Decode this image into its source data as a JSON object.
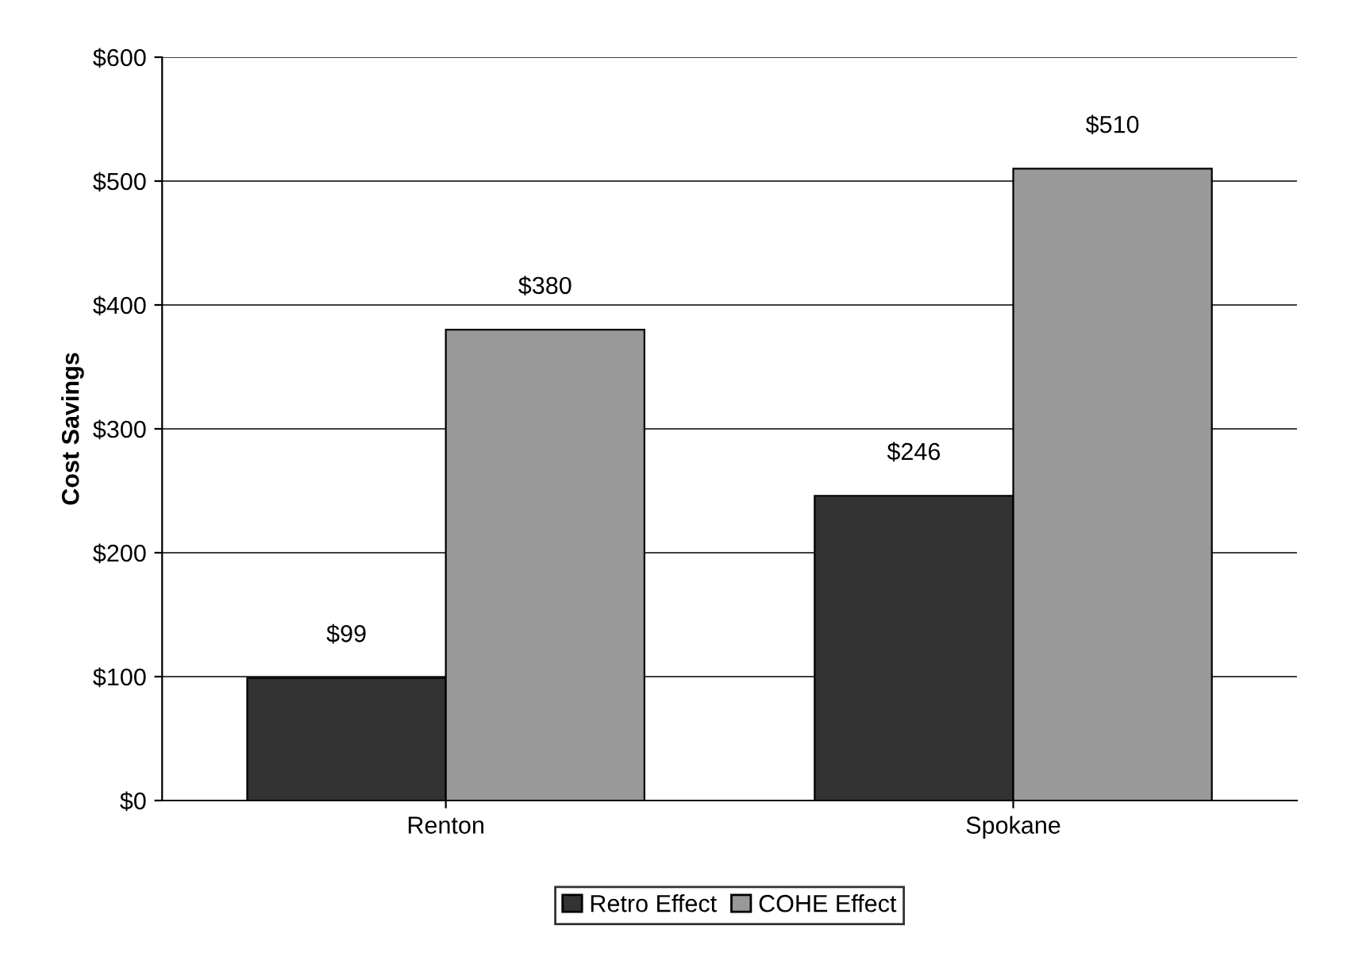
{
  "chart_data": {
    "type": "bar",
    "ylabel": "Cost Savings",
    "categories": [
      "Renton",
      "Spokane"
    ],
    "series": [
      {
        "name": "Retro Effect",
        "color": "#333333",
        "values": [
          99,
          246
        ],
        "value_labels": [
          "$99",
          "$246"
        ]
      },
      {
        "name": "COHE Effect",
        "color": "#999999",
        "values": [
          380,
          510
        ],
        "value_labels": [
          "$380",
          "$510"
        ]
      }
    ],
    "ylim": [
      0,
      600
    ],
    "yticks": [
      {
        "value": 0,
        "label": "$0"
      },
      {
        "value": 100,
        "label": "$100"
      },
      {
        "value": 200,
        "label": "$200"
      },
      {
        "value": 300,
        "label": "$300"
      },
      {
        "value": 400,
        "label": "$400"
      },
      {
        "value": 500,
        "label": "$500"
      },
      {
        "value": 600,
        "label": "$600"
      }
    ],
    "grid": "y",
    "legend": "bottom"
  }
}
